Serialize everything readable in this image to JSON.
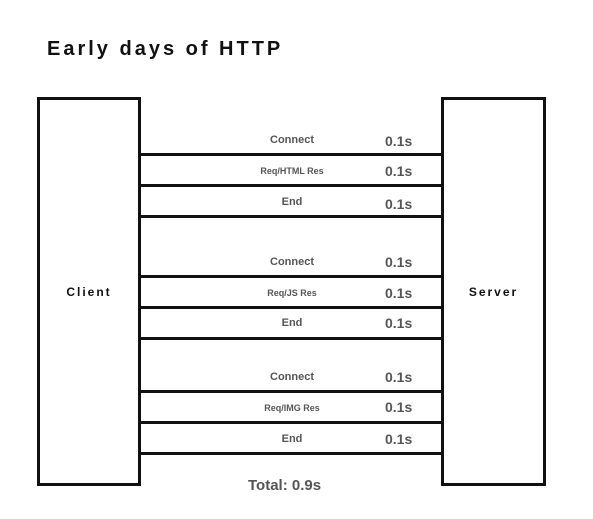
{
  "title": "Early days of HTTP",
  "client_label": "Client",
  "server_label": "Server",
  "groups": [
    {
      "steps": [
        {
          "label": "Connect",
          "time": "0.1s"
        },
        {
          "label": "Req/HTML Res",
          "time": "0.1s"
        },
        {
          "label": "End",
          "time": "0.1s"
        }
      ]
    },
    {
      "steps": [
        {
          "label": "Connect",
          "time": "0.1s"
        },
        {
          "label": "Req/JS Res",
          "time": "0.1s"
        },
        {
          "label": "End",
          "time": "0.1s"
        }
      ]
    },
    {
      "steps": [
        {
          "label": "Connect",
          "time": "0.1s"
        },
        {
          "label": "Req/IMG Res",
          "time": "0.1s"
        },
        {
          "label": "End",
          "time": "0.1s"
        }
      ]
    }
  ],
  "total": "Total: 0.9s"
}
